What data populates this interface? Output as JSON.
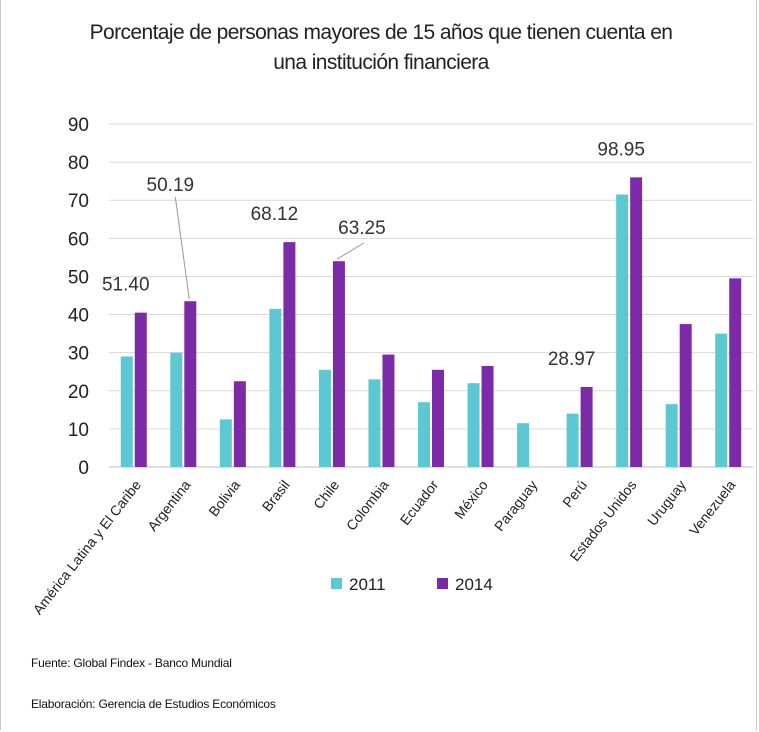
{
  "title_line1": "Porcentaje de personas mayores de 15 años que tienen cuenta en",
  "title_line2": "una institución financiera",
  "source": "Fuente: Global Findex - Banco Mundial",
  "credit": "Elaboración: Gerencia de Estudios Económicos",
  "colors": {
    "s2011": "#5bc8d3",
    "s2014": "#7b2aa8",
    "grid": "#d9d9d9",
    "text": "#222222"
  },
  "chart_data": {
    "type": "bar",
    "title": "Porcentaje de personas mayores de 15 años que tienen cuenta en una institución financiera",
    "categories": [
      "América Latina y El Caribe",
      "Argentina",
      "Bolivia",
      "Brasil",
      "Chile",
      "Colombia",
      "Ecuador",
      "México",
      "Paraguay",
      "Perú",
      "Estados Unidos",
      "Uruguay",
      "Venezuela"
    ],
    "series": [
      {
        "name": "2011",
        "values": [
          29,
          30,
          12.5,
          41.5,
          25.5,
          23,
          17,
          22,
          11.5,
          14,
          71.5,
          16.5,
          35
        ]
      },
      {
        "name": "2014",
        "values": [
          40.5,
          43.5,
          22.5,
          59,
          54,
          29.5,
          25.5,
          26.5,
          null,
          21,
          76,
          37.5,
          49.5
        ]
      }
    ],
    "yticks": [
      0,
      10,
      20,
      30,
      40,
      50,
      60,
      70,
      80,
      90
    ],
    "ylim": [
      0,
      90
    ],
    "grid": true,
    "legend": "bottom",
    "annotations": [
      {
        "text": "51.40",
        "category": "América Latina y El Caribe",
        "leader": false
      },
      {
        "text": "50.19",
        "category": "Argentina",
        "leader": true
      },
      {
        "text": "68.12",
        "category": "Brasil",
        "leader": false
      },
      {
        "text": "63.25",
        "category": "Chile",
        "leader": true
      },
      {
        "text": "28.97",
        "category": "Perú",
        "leader": false
      },
      {
        "text": "98.95",
        "category": "Estados Unidos",
        "leader": false
      }
    ]
  }
}
